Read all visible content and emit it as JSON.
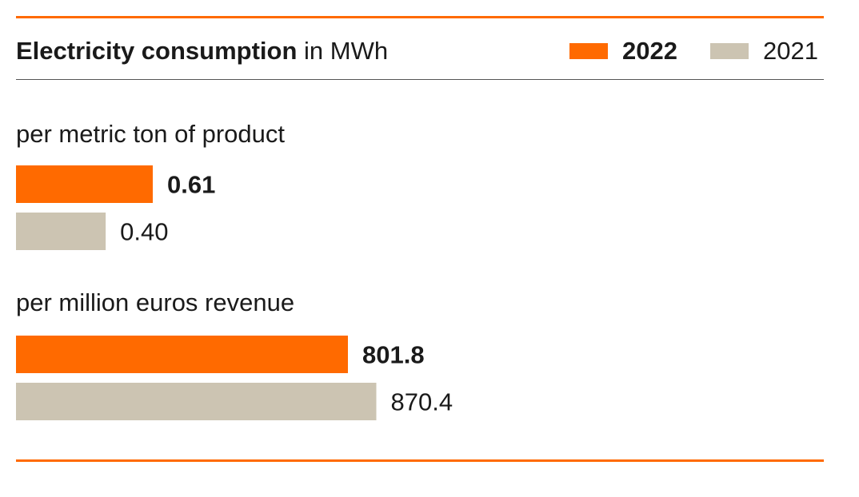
{
  "colors": {
    "series_2022": "#ff6a00",
    "series_2021": "#ccc4b2",
    "accent_rule": "#ff6a00"
  },
  "chart_data": {
    "type": "bar",
    "orientation": "horizontal",
    "title": "Electricity consumption",
    "title_unit": "in MWh",
    "legend_position": "top-right",
    "groups": [
      {
        "label": "per metric ton of product",
        "bars": [
          {
            "series": "2022",
            "value": 0.61,
            "value_label": "0.61"
          },
          {
            "series": "2021",
            "value": 0.4,
            "value_label": "0.40"
          }
        ]
      },
      {
        "label": "per million euros revenue",
        "bars": [
          {
            "series": "2022",
            "value": 801.8,
            "value_label": "801.8"
          },
          {
            "series": "2021",
            "value": 870.4,
            "value_label": "870.4"
          }
        ]
      }
    ],
    "series": [
      {
        "name": "2022",
        "color": "#ff6a00"
      },
      {
        "name": "2021",
        "color": "#ccc4b2"
      }
    ]
  }
}
